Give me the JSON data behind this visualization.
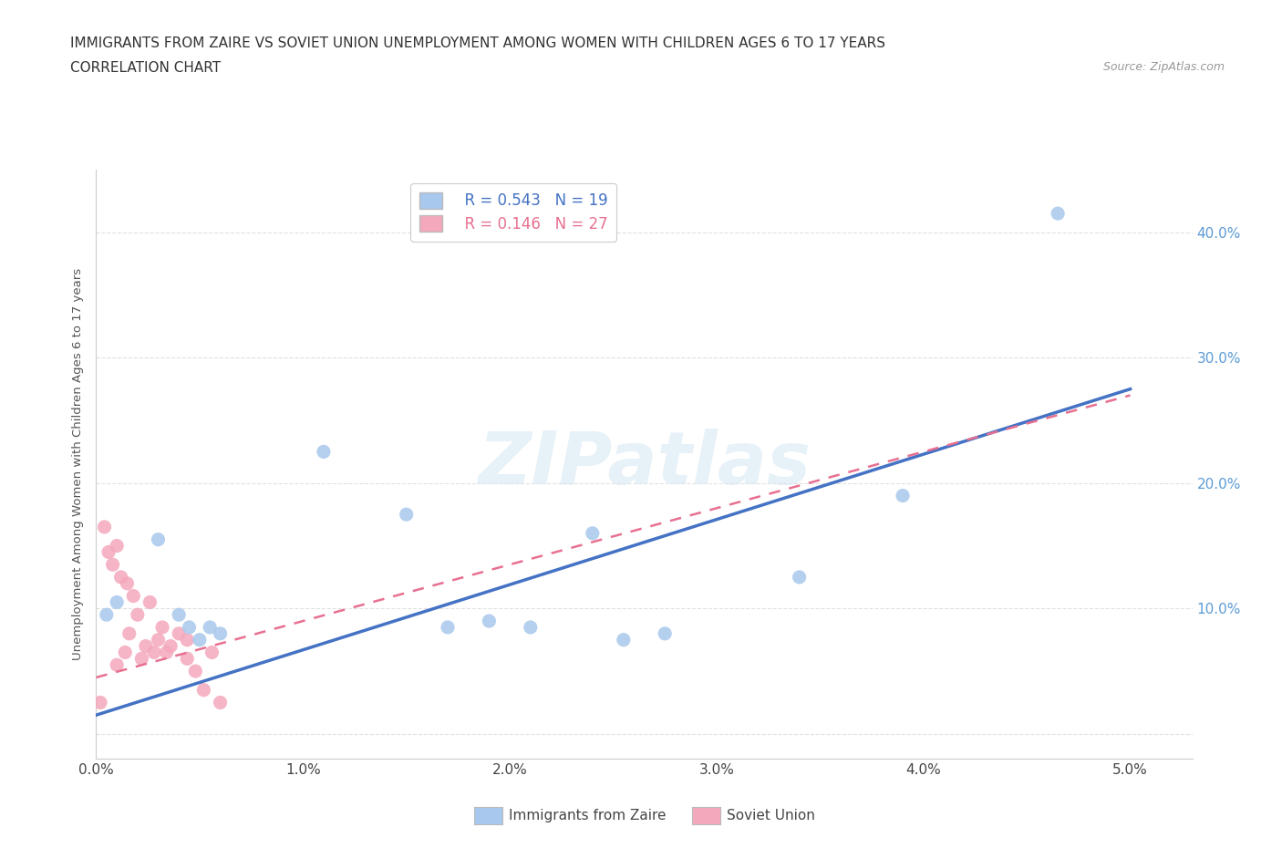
{
  "title_line1": "IMMIGRANTS FROM ZAIRE VS SOVIET UNION UNEMPLOYMENT AMONG WOMEN WITH CHILDREN AGES 6 TO 17 YEARS",
  "title_line2": "CORRELATION CHART",
  "source": "Source: ZipAtlas.com",
  "xlabel_ticks": [
    "0.0%",
    "1.0%",
    "2.0%",
    "3.0%",
    "4.0%",
    "5.0%"
  ],
  "ylabel_ticks": [
    "",
    "10.0%",
    "20.0%",
    "30.0%",
    "40.0%"
  ],
  "xlim": [
    0.0,
    5.3
  ],
  "ylim": [
    -2.0,
    45.0
  ],
  "watermark": "ZIPatlas",
  "legend_zaire_r": "R = 0.543",
  "legend_zaire_n": "N = 19",
  "legend_soviet_r": "R = 0.146",
  "legend_soviet_n": "N = 27",
  "color_zaire": "#a8c8ed",
  "color_soviet": "#f4a8bc",
  "color_zaire_line": "#4472c4",
  "color_soviet_line": "#e87090",
  "color_right_axis": "#5b9bd5",
  "zaire_x": [
    0.05,
    0.1,
    0.3,
    0.4,
    0.45,
    0.5,
    0.55,
    0.6,
    1.1,
    1.5,
    1.7,
    1.9,
    2.1,
    2.4,
    2.55,
    2.75,
    3.4,
    3.9,
    4.65
  ],
  "zaire_y": [
    9.5,
    10.5,
    15.5,
    9.5,
    8.5,
    7.5,
    8.5,
    8.0,
    22.5,
    17.5,
    8.5,
    9.0,
    8.5,
    16.0,
    7.5,
    8.0,
    12.5,
    19.0,
    41.5
  ],
  "soviet_x": [
    0.02,
    0.04,
    0.06,
    0.08,
    0.1,
    0.1,
    0.12,
    0.14,
    0.15,
    0.16,
    0.18,
    0.2,
    0.22,
    0.24,
    0.26,
    0.28,
    0.3,
    0.32,
    0.34,
    0.36,
    0.4,
    0.44,
    0.44,
    0.48,
    0.52,
    0.56,
    0.6
  ],
  "soviet_y": [
    2.5,
    16.5,
    14.5,
    13.5,
    15.0,
    5.5,
    12.5,
    6.5,
    12.0,
    8.0,
    11.0,
    9.5,
    6.0,
    7.0,
    10.5,
    6.5,
    7.5,
    8.5,
    6.5,
    7.0,
    8.0,
    7.5,
    6.0,
    5.0,
    3.5,
    6.5,
    2.5
  ],
  "zaire_trend": [
    0.0,
    5.0
  ],
  "zaire_trend_y": [
    1.5,
    27.5
  ],
  "soviet_trend": [
    0.0,
    5.0
  ],
  "soviet_trend_y": [
    4.5,
    27.0
  ],
  "background_color": "#ffffff",
  "grid_color": "#cccccc"
}
